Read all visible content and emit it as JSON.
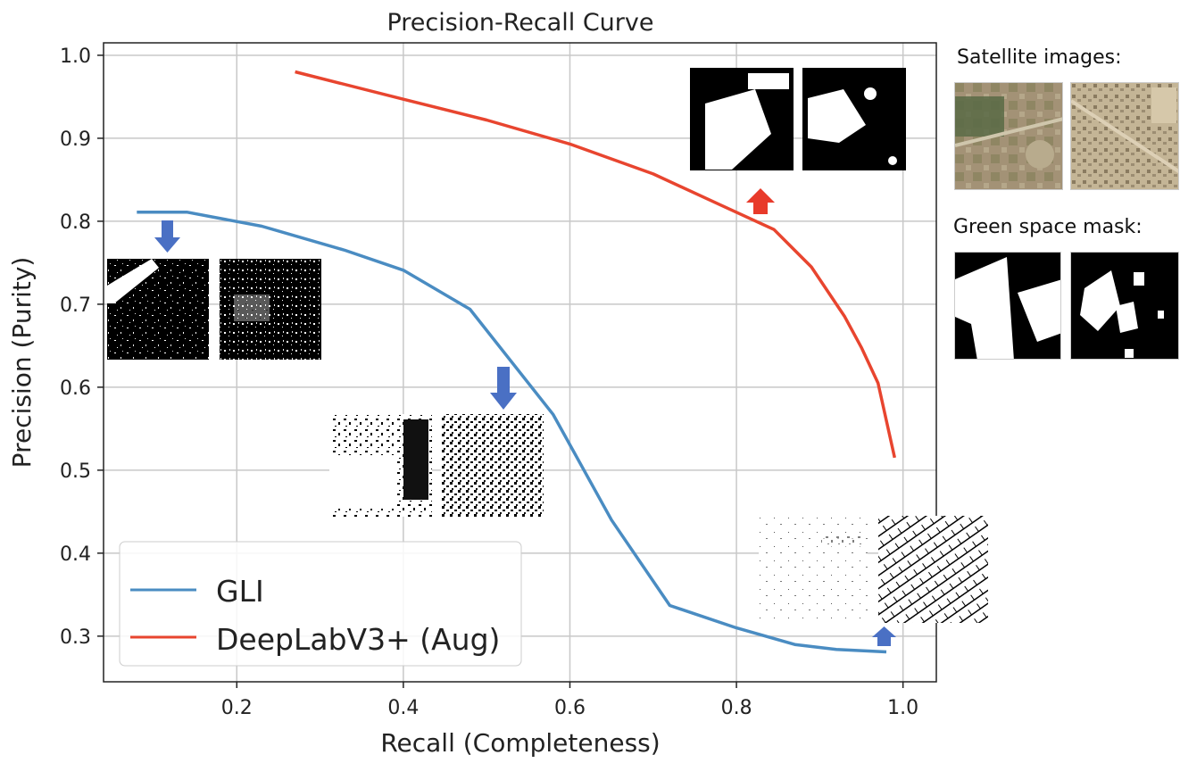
{
  "chart_data": {
    "type": "line",
    "title": "Precision-Recall Curve",
    "xlabel": "Recall (Completeness)",
    "ylabel": "Precision (Purity)",
    "xlim": [
      0.04,
      1.04
    ],
    "ylim": [
      0.245,
      1.015
    ],
    "xticks": [
      0.2,
      0.4,
      0.6,
      0.8,
      1.0
    ],
    "xtick_labels": [
      "0.2",
      "0.4",
      "0.6",
      "0.8",
      "1.0"
    ],
    "yticks": [
      0.3,
      0.4,
      0.5,
      0.6,
      0.7,
      0.8,
      0.9,
      1.0
    ],
    "ytick_labels": [
      "0.3",
      "0.4",
      "0.5",
      "0.6",
      "0.7",
      "0.8",
      "0.9",
      "1.0"
    ],
    "grid": true,
    "legend_position": "bottom-left",
    "series": [
      {
        "name": "GLI",
        "color": "#4a8cc2",
        "points": [
          [
            0.08,
            0.811
          ],
          [
            0.14,
            0.811
          ],
          [
            0.23,
            0.794
          ],
          [
            0.33,
            0.765
          ],
          [
            0.4,
            0.741
          ],
          [
            0.48,
            0.694
          ],
          [
            0.58,
            0.567
          ],
          [
            0.65,
            0.44
          ],
          [
            0.72,
            0.337
          ],
          [
            0.8,
            0.31
          ],
          [
            0.87,
            0.29
          ],
          [
            0.92,
            0.284
          ],
          [
            0.98,
            0.281
          ]
        ]
      },
      {
        "name": "DeepLabV3+ (Aug)",
        "color": "#e8452f",
        "points": [
          [
            0.27,
            0.98
          ],
          [
            0.4,
            0.947
          ],
          [
            0.5,
            0.922
          ],
          [
            0.6,
            0.893
          ],
          [
            0.7,
            0.857
          ],
          [
            0.78,
            0.82
          ],
          [
            0.845,
            0.79
          ],
          [
            0.89,
            0.745
          ],
          [
            0.93,
            0.685
          ],
          [
            0.95,
            0.648
          ],
          [
            0.97,
            0.605
          ],
          [
            0.98,
            0.56
          ],
          [
            0.99,
            0.515
          ]
        ]
      }
    ]
  },
  "side_panel": {
    "satellite_label": "Satellite images:",
    "mask_label": "Green space mask:"
  },
  "annotations": {
    "arrow_blue_color": "#4a70c4",
    "arrow_red_color": "#e83a2a"
  }
}
